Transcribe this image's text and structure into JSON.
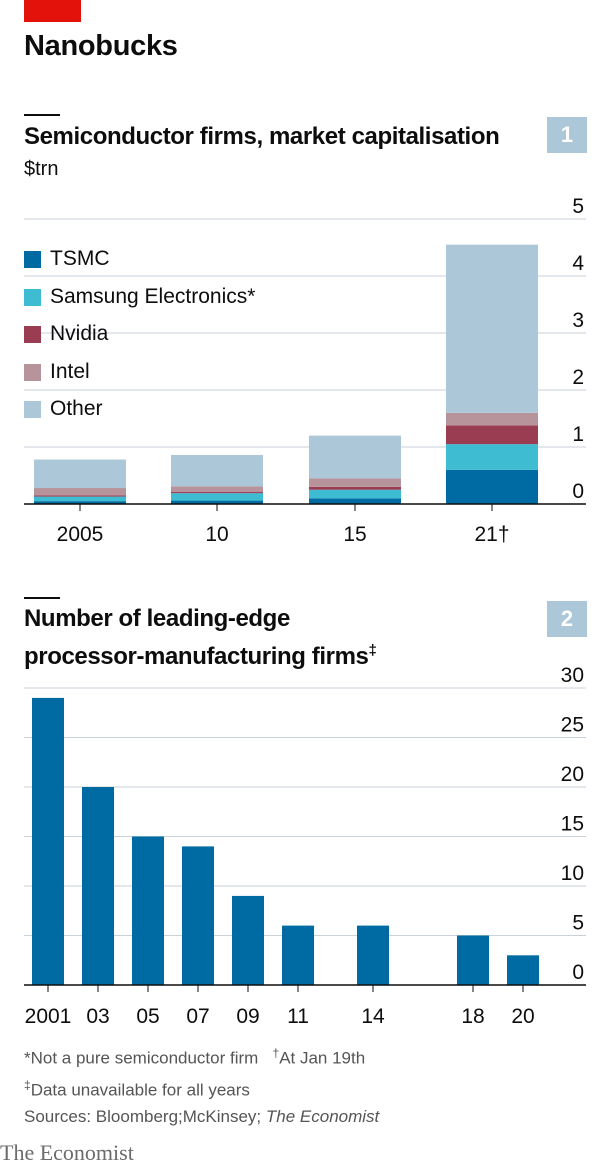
{
  "headline": "Nanobucks",
  "chart1": {
    "number": "1",
    "title": "Semiconductor firms, market capitalisation",
    "unit": "$trn",
    "legend": [
      {
        "label": "TSMC",
        "color": "#006ba2"
      },
      {
        "label": "Samsung Electronics*",
        "color": "#3ebcd2"
      },
      {
        "label": "Nvidia",
        "color": "#9a3d52"
      },
      {
        "label": "Intel",
        "color": "#b7939c"
      },
      {
        "label": "Other",
        "color": "#acc8d8"
      }
    ]
  },
  "chart2": {
    "number": "2",
    "title_line1": "Number of leading-edge",
    "title_line2": "processor-manufacturing firms",
    "title_mark": "‡"
  },
  "notes": {
    "line1": "*Not a pure semiconductor firm",
    "line1b_mark": "†",
    "line1b": "At Jan 19th",
    "line2_mark": "‡",
    "line2": "Data unavailable for all years",
    "line3": "Sources: Bloomberg;McKinsey; ",
    "line3_italic": "The Economist"
  },
  "brand": "The Economist",
  "chart_data": [
    {
      "type": "bar",
      "stacked": true,
      "title": "Semiconductor firms, market capitalisation",
      "ylabel": "$trn",
      "categories": [
        "2005",
        "10",
        "15",
        "21†"
      ],
      "series": [
        {
          "name": "TSMC",
          "color": "#006ba2",
          "values": [
            0.05,
            0.06,
            0.1,
            0.6
          ]
        },
        {
          "name": "Samsung Electronics*",
          "color": "#3ebcd2",
          "values": [
            0.08,
            0.13,
            0.15,
            0.45
          ]
        },
        {
          "name": "Nvidia",
          "color": "#9a3d52",
          "values": [
            0.02,
            0.02,
            0.05,
            0.33
          ]
        },
        {
          "name": "Intel",
          "color": "#b7939c",
          "values": [
            0.13,
            0.1,
            0.15,
            0.22
          ]
        },
        {
          "name": "Other",
          "color": "#acc8d8",
          "values": [
            0.5,
            0.55,
            0.75,
            2.95
          ]
        }
      ],
      "ylim": [
        0,
        5
      ],
      "yticks": [
        0,
        1,
        2,
        3,
        4,
        5
      ],
      "grid": true,
      "legend_position": "top-left"
    },
    {
      "type": "bar",
      "title": "Number of leading-edge processor-manufacturing firms‡",
      "x": [
        2001,
        2003,
        2005,
        2007,
        2009,
        2011,
        2014,
        2018,
        2020
      ],
      "tick_labels": [
        "2001",
        "03",
        "05",
        "07",
        "09",
        "11",
        "14",
        "18",
        "20"
      ],
      "values": [
        29,
        20,
        15,
        14,
        9,
        6,
        6,
        5,
        3
      ],
      "color": "#006ba2",
      "ylim": [
        0,
        30
      ],
      "yticks": [
        0,
        5,
        10,
        15,
        20,
        25,
        30
      ],
      "grid": true
    }
  ]
}
